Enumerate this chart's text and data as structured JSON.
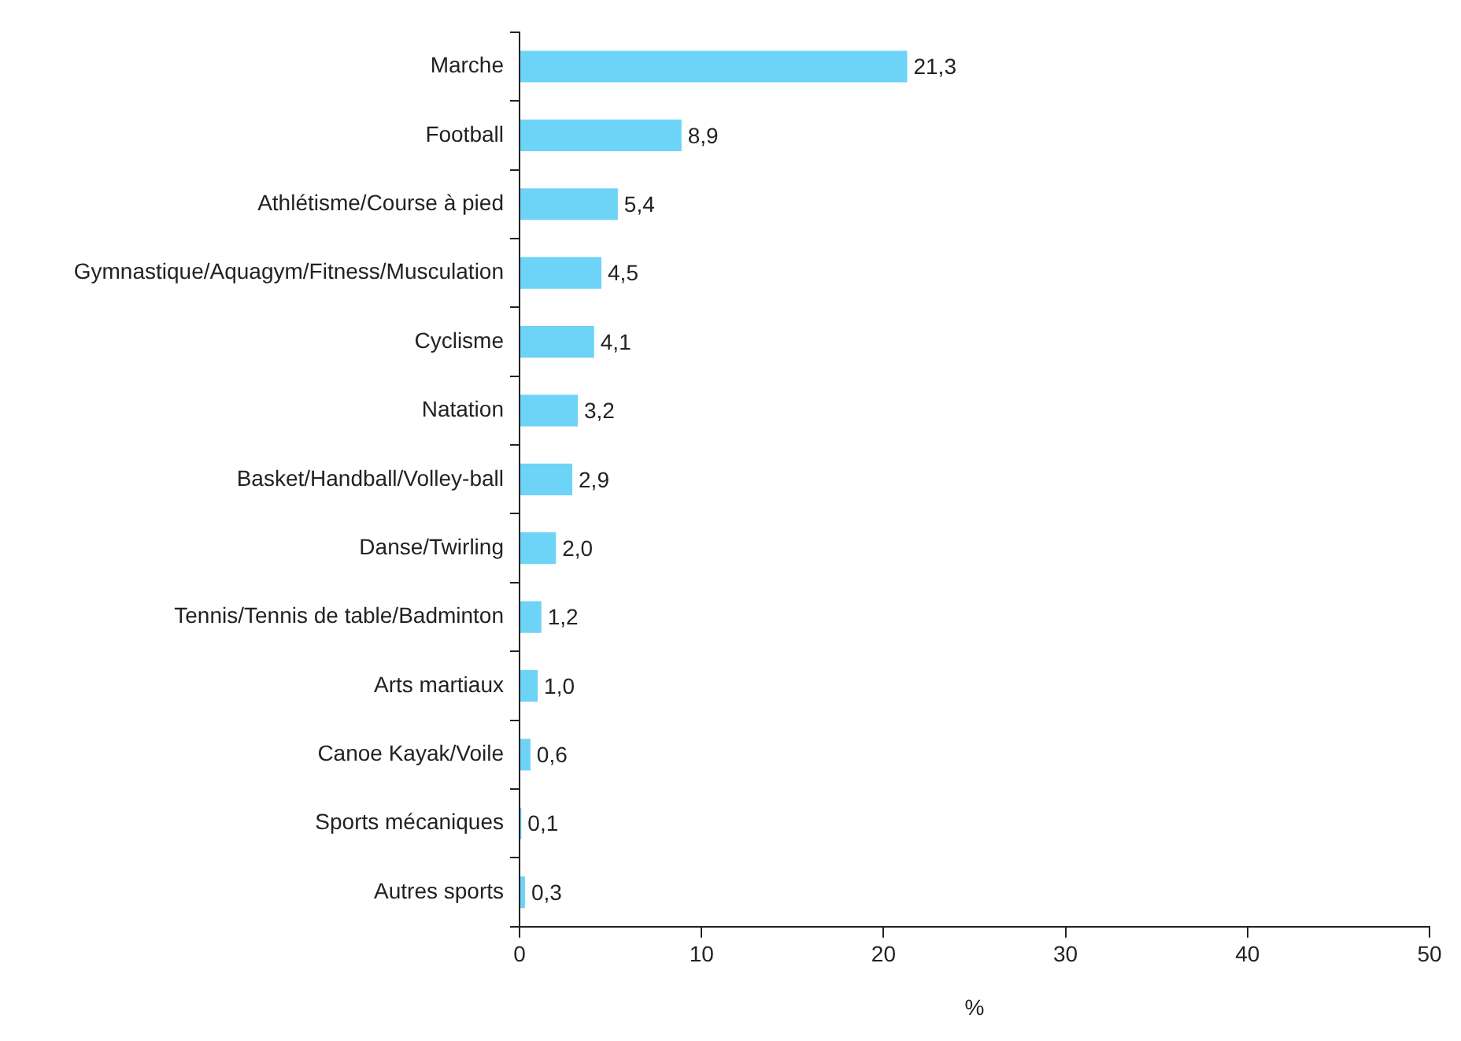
{
  "chart_data": {
    "type": "bar",
    "orientation": "horizontal",
    "xlabel": "%",
    "categories": [
      "Marche",
      "Football",
      "Athlétisme/Course à pied",
      "Gymnastique/Aquagym/Fitness/Musculation",
      "Cyclisme",
      "Natation",
      "Basket/Handball/Volley-ball",
      "Danse/Twirling",
      "Tennis/Tennis de table/Badminton",
      "Arts martiaux",
      "Canoe Kayak/Voile",
      "Sports mécaniques",
      "Autres sports"
    ],
    "values": [
      21.3,
      8.9,
      5.4,
      4.5,
      4.1,
      3.2,
      2.9,
      2.0,
      1.2,
      1.0,
      0.6,
      0.1,
      0.3
    ],
    "value_labels": [
      "21,3",
      "8,9",
      "5,4",
      "4,5",
      "4,1",
      "3,2",
      "2,9",
      "2,0",
      "1,2",
      "1,0",
      "0,6",
      "0,1",
      "0,3"
    ],
    "color": "#6dd3f7",
    "xlim": [
      0,
      50
    ],
    "xticks": [
      0,
      10,
      20,
      30,
      40,
      50
    ],
    "grid": false,
    "legend": false
  }
}
